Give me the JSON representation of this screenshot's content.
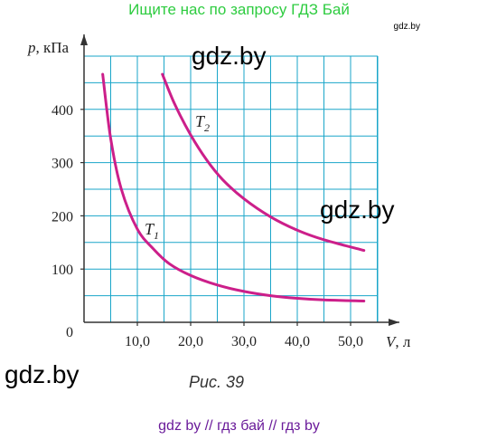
{
  "banner": "Ищите нас по запросу ГДЗ Бай",
  "site_tag": "gdz.by",
  "watermarks": [
    "gdz.by",
    "gdz.by",
    "gdz.by"
  ],
  "caption": "Рис. 39",
  "footer": "gdz by  //  гдз бай  //  гдз by",
  "colors": {
    "grid": "#1aa6c9",
    "curve": "#cc1f8a",
    "axis": "#333333",
    "banner": "#2ecc40",
    "footer": "#6a1b9a"
  },
  "chart_data": {
    "type": "line",
    "origin_label": "0",
    "xlabel": "V",
    "xunit": ", л",
    "ylabel": "p",
    "yunit": ", кПа",
    "x_ticks": [
      "10,0",
      "20,0",
      "30,0",
      "40,0",
      "50,0"
    ],
    "x_tick_values": [
      10,
      20,
      30,
      40,
      50
    ],
    "y_ticks": [
      "100",
      "200",
      "300",
      "400"
    ],
    "y_tick_values": [
      100,
      200,
      300,
      400
    ],
    "xlim": [
      0,
      55
    ],
    "ylim": [
      0,
      500
    ],
    "series": [
      {
        "name": "T",
        "subscript": "1",
        "x": [
          3.5,
          5,
          7,
          10,
          13,
          16,
          20,
          25,
          30,
          35,
          40,
          45,
          52.5
        ],
        "y": [
          466,
          345,
          250,
          175,
          138,
          110,
          88,
          70,
          58,
          50,
          45,
          42,
          40
        ]
      },
      {
        "name": "T",
        "subscript": "2",
        "x": [
          14.7,
          17,
          20,
          23,
          26,
          30,
          35,
          40,
          45,
          52.5
        ],
        "y": [
          466,
          410,
          352,
          305,
          268,
          232,
          198,
          173,
          155,
          135
        ]
      }
    ]
  }
}
